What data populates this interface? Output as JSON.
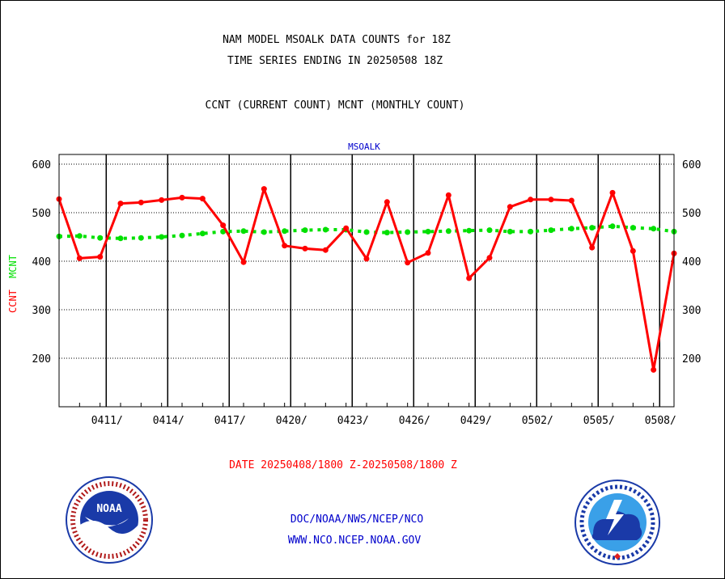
{
  "colors": {
    "ccnt": "#ff0000",
    "mcnt": "#00e000",
    "station": "#0000cc",
    "footer": "#0000cc",
    "axis": "#000000"
  },
  "chart_data": {
    "type": "line",
    "title": "NAM MODEL MSOALK DATA COUNTS for 18Z",
    "subtitle": "TIME SERIES ENDING IN 20250508 18Z",
    "legend_text": "CCNT (CURRENT COUNT) MCNT (MONTHLY COUNT)",
    "station_label": "MSOALK",
    "ylabel_ccnt": "CCNT",
    "ylabel_mcnt": "MCNT",
    "xlabel": "DATE 20250408/1800 Z-20250508/1800 Z",
    "ylim": [
      100,
      620
    ],
    "yticks": [
      200,
      300,
      400,
      500,
      600
    ],
    "grid": true,
    "x_days": [
      "0408",
      "0409",
      "0410",
      "0411",
      "0412",
      "0413",
      "0414",
      "0415",
      "0416",
      "0417",
      "0418",
      "0419",
      "0420",
      "0421",
      "0422",
      "0423",
      "0424",
      "0425",
      "0426",
      "0427",
      "0428",
      "0429",
      "0430",
      "0501",
      "0502",
      "0503",
      "0504",
      "0505",
      "0506",
      "0507",
      "0508"
    ],
    "xtick_labels": [
      "0411/",
      "0414/",
      "0417/",
      "0420/",
      "0423/",
      "0426/",
      "0429/",
      "0502/",
      "0505/",
      "0508/"
    ],
    "series": [
      {
        "name": "CCNT",
        "values": [
          528,
          406,
          409,
          519,
          521,
          526,
          531,
          529,
          474,
          398,
          549,
          432,
          426,
          423,
          468,
          405,
          522,
          397,
          417,
          536,
          365,
          407,
          512,
          527,
          527,
          525,
          428,
          541,
          421,
          176,
          416
        ]
      },
      {
        "name": "MCNT",
        "values": [
          451,
          452,
          448,
          447,
          448,
          450,
          453,
          457,
          461,
          462,
          460,
          462,
          464,
          465,
          465,
          460,
          459,
          460,
          461,
          462,
          463,
          464,
          461,
          461,
          464,
          467,
          469,
          472,
          469,
          467,
          461
        ]
      }
    ]
  },
  "footer": {
    "line1": "DOC/NOAA/NWS/NCEP/NCO",
    "line2": "WWW.NCO.NCEP.NOAA.GOV"
  },
  "logos": {
    "left": {
      "name": "noaa-logo",
      "text": "NOAA",
      "ring_text": "NATIONAL OCEANIC AND ATMOSPHERIC ADMINISTRATION · U.S. DEPARTMENT OF COMMERCE"
    },
    "right": {
      "name": "nws-logo",
      "ring_text": "NATIONAL WEATHER SERVICE"
    }
  }
}
